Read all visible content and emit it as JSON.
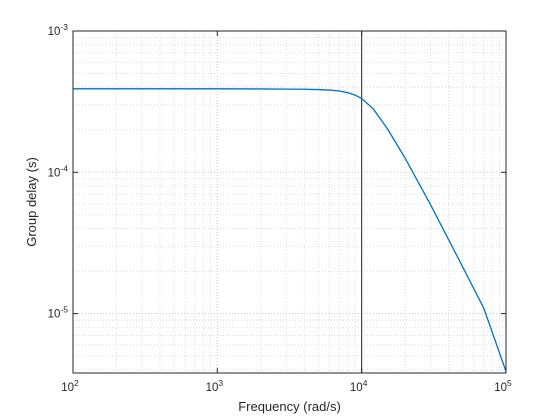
{
  "chart_data": {
    "type": "line",
    "title": "",
    "xlabel": "Frequency (rad/s)",
    "ylabel": "Group delay (s)",
    "xscale": "log",
    "yscale": "log",
    "xlim": [
      100,
      100000
    ],
    "ylim": [
      3.8e-06,
      0.001
    ],
    "grid": "major and minor",
    "x_ticks": [
      {
        "value": 100,
        "base": "10",
        "exp": "2"
      },
      {
        "value": 1000,
        "base": "10",
        "exp": "3"
      },
      {
        "value": 10000,
        "base": "10",
        "exp": "4"
      },
      {
        "value": 100000,
        "base": "10",
        "exp": "5"
      }
    ],
    "y_ticks": [
      {
        "value": 1e-05,
        "base": "10",
        "exp": "-5"
      },
      {
        "value": 0.0001,
        "base": "10",
        "exp": "-4"
      },
      {
        "value": 0.001,
        "base": "10",
        "exp": "-3"
      }
    ],
    "marker_line_x": 10000,
    "series": [
      {
        "color": "#0072BD",
        "x": [
          100,
          200,
          500,
          1000,
          2000,
          3000,
          4000,
          5000,
          6000,
          7000,
          8000,
          9000,
          10000,
          12000,
          15000,
          20000,
          30000,
          50000,
          70000,
          100000
        ],
        "y": [
          0.00039,
          0.00039,
          0.00039,
          0.00039,
          0.000389,
          0.000388,
          0.000387,
          0.000385,
          0.000382,
          0.000376,
          0.000366,
          0.000352,
          0.000333,
          0.000282,
          0.000205,
          0.000126,
          5.9e-05,
          2.15e-05,
          1.1e-05,
          3.9e-06
        ]
      }
    ]
  }
}
